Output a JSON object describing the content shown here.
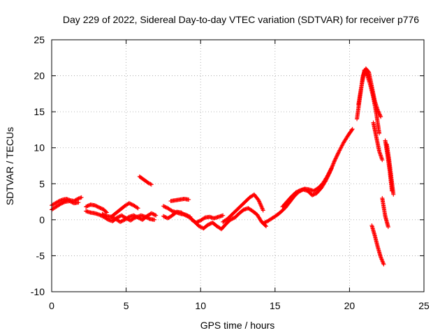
{
  "chart_data": {
    "type": "scatter",
    "title": "Day 229 of 2022, Sidereal Day-to-day VTEC variation (SDTVAR) for receiver p776",
    "xlabel": "GPS time / hours",
    "ylabel": "SDTVAR / TECUs",
    "xlim": [
      0,
      25
    ],
    "ylim": [
      -10,
      25
    ],
    "x_ticks": [
      0,
      5,
      10,
      15,
      20,
      25
    ],
    "y_ticks": [
      -10,
      -5,
      0,
      5,
      10,
      15,
      20,
      25
    ],
    "x_tick_labels": [
      "0",
      "5",
      "10",
      "15",
      "20",
      "25"
    ],
    "y_tick_labels": [
      "-10",
      "-5",
      "0",
      "5",
      "10",
      "15",
      "20",
      "25"
    ],
    "grid": true,
    "marker": "+",
    "marker_color": "#ff0000",
    "series": [
      {
        "name": "p776 SDTVAR",
        "segments": [
          {
            "x": [
              0.0,
              0.25,
              0.5,
              0.75,
              1.0,
              1.25,
              1.5,
              1.75,
              2.0
            ],
            "y": [
              2.0,
              2.3,
              2.6,
              2.8,
              2.9,
              2.7,
              2.6,
              2.9,
              3.1
            ]
          },
          {
            "x": [
              0.0,
              0.3,
              0.6,
              0.9,
              1.2,
              1.5,
              1.8
            ],
            "y": [
              1.4,
              1.8,
              2.2,
              2.5,
              2.6,
              2.3,
              2.4
            ]
          },
          {
            "x": [
              2.3,
              2.6,
              2.9,
              3.2,
              3.5,
              3.7
            ],
            "y": [
              1.8,
              2.1,
              2.0,
              1.7,
              1.4,
              1.0
            ]
          },
          {
            "x": [
              2.3,
              2.6,
              2.9,
              3.2,
              3.5,
              3.8,
              4.1,
              4.4,
              4.7,
              5.0,
              5.3,
              5.6,
              6.0,
              6.3,
              6.6,
              6.9
            ],
            "y": [
              1.2,
              1.0,
              0.9,
              0.7,
              0.4,
              0.0,
              -0.2,
              0.3,
              0.6,
              0.2,
              -0.1,
              0.3,
              0.6,
              0.4,
              0.1,
              0.0
            ]
          },
          {
            "x": [
              3.4,
              3.7,
              4.0,
              4.3,
              4.6,
              4.9,
              5.2,
              5.5,
              5.8
            ],
            "y": [
              0.8,
              0.5,
              0.4,
              0.9,
              1.4,
              1.9,
              2.3,
              2.0,
              1.6
            ]
          },
          {
            "x": [
              4.0,
              4.3,
              4.6,
              4.9,
              5.2,
              5.5,
              5.8,
              6.1,
              6.4,
              6.7,
              7.0
            ],
            "y": [
              0.4,
              0.1,
              -0.3,
              0.0,
              0.4,
              0.6,
              0.3,
              0.0,
              0.5,
              0.9,
              0.6
            ]
          },
          {
            "x": [
              5.9,
              6.1,
              6.3,
              6.5,
              6.7
            ],
            "y": [
              6.0,
              5.7,
              5.4,
              5.1,
              4.9
            ]
          },
          {
            "x": [
              7.5,
              7.8,
              8.1,
              8.4,
              8.7,
              9.0,
              9.3
            ],
            "y": [
              1.9,
              1.6,
              1.2,
              1.0,
              0.8,
              0.7,
              0.4
            ]
          },
          {
            "x": [
              8.0,
              8.3,
              8.6,
              8.9,
              9.2
            ],
            "y": [
              2.6,
              2.7,
              2.8,
              2.9,
              2.8
            ]
          },
          {
            "x": [
              7.5,
              7.8,
              8.1,
              8.4,
              8.7,
              9.0,
              9.3,
              9.6,
              9.9,
              10.2,
              10.5,
              10.8,
              11.1,
              11.4,
              11.7,
              12.0,
              12.3,
              12.6,
              12.9,
              13.2,
              13.5,
              13.8,
              14.1,
              14.4
            ],
            "y": [
              0.5,
              0.2,
              0.6,
              1.1,
              1.0,
              0.6,
              0.3,
              -0.3,
              -0.9,
              -1.2,
              -0.7,
              -0.4,
              -0.9,
              -1.3,
              -0.6,
              0.0,
              0.3,
              0.9,
              1.4,
              1.6,
              1.2,
              0.7,
              -0.3,
              -0.9
            ]
          },
          {
            "x": [
              9.4,
              9.7,
              10.0,
              10.3,
              10.6,
              10.9,
              11.2,
              11.5
            ],
            "y": [
              0.0,
              -0.4,
              -0.1,
              0.3,
              0.4,
              0.2,
              0.4,
              0.6
            ]
          },
          {
            "x": [
              11.5,
              11.8,
              12.1,
              12.4,
              12.7,
              13.0,
              13.3,
              13.6,
              13.9,
              14.2
            ],
            "y": [
              -0.3,
              0.1,
              0.7,
              1.3,
              1.9,
              2.5,
              3.1,
              3.5,
              2.7,
              1.3
            ]
          },
          {
            "x": [
              14.2,
              14.5,
              14.8,
              15.1,
              15.4,
              15.7,
              16.0,
              16.3,
              16.6,
              16.9,
              17.2,
              17.5,
              17.8,
              18.1,
              18.4,
              18.7,
              19.0,
              19.3,
              19.6,
              19.9,
              20.2
            ],
            "y": [
              -0.5,
              -0.2,
              0.2,
              0.6,
              1.1,
              1.7,
              2.5,
              3.3,
              3.9,
              4.2,
              4.0,
              3.4,
              3.7,
              4.4,
              5.4,
              6.7,
              8.2,
              9.5,
              10.7,
              11.7,
              12.6
            ]
          },
          {
            "x": [
              15.5,
              15.8,
              16.1,
              16.4,
              16.7,
              17.0,
              17.3,
              17.6,
              17.9,
              18.2,
              18.5,
              18.8
            ],
            "y": [
              1.8,
              2.5,
              3.2,
              3.8,
              4.1,
              4.3,
              4.2,
              4.0,
              4.4,
              5.0,
              6.0,
              7.2
            ]
          },
          {
            "x": [
              20.5,
              20.7,
              20.9,
              21.1,
              21.3,
              21.5,
              21.7,
              21.9,
              22.1
            ],
            "y": [
              14.0,
              17.0,
              20.0,
              21.0,
              20.5,
              18.5,
              16.5,
              15.2,
              14.3
            ]
          },
          {
            "x": [
              20.6,
              20.8,
              21.0,
              21.2,
              21.4,
              21.6,
              21.8,
              22.0
            ],
            "y": [
              16.0,
              18.5,
              20.8,
              20.0,
              18.7,
              17.0,
              14.8,
              12.0
            ]
          },
          {
            "x": [
              21.6,
              21.8,
              22.0,
              22.2
            ],
            "y": [
              13.5,
              11.5,
              9.5,
              8.3
            ]
          },
          {
            "x": [
              22.4,
              22.55,
              22.7,
              22.85
            ],
            "y": [
              11.0,
              9.0,
              6.8,
              4.0
            ]
          },
          {
            "x": [
              22.5,
              22.65,
              22.8,
              22.95
            ],
            "y": [
              10.5,
              8.5,
              6.0,
              3.5
            ]
          },
          {
            "x": [
              22.2,
              22.4,
              22.6
            ],
            "y": [
              3.0,
              0.5,
              -1.0
            ]
          },
          {
            "x": [
              21.5,
              21.7,
              21.9,
              22.1,
              22.3
            ],
            "y": [
              -0.8,
              -2.2,
              -3.8,
              -5.2,
              -6.2
            ]
          }
        ]
      }
    ]
  }
}
